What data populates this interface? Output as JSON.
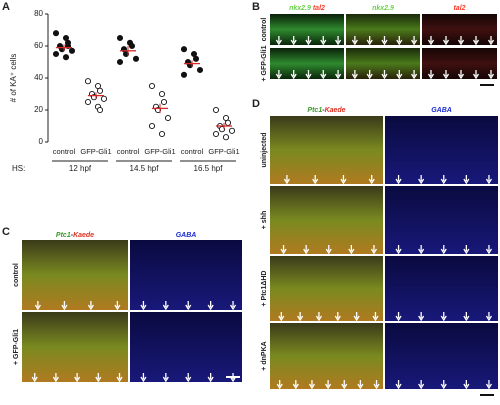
{
  "chart_data": {
    "type": "dot",
    "panel_label": "A",
    "ylabel": "# of KA⁺ cells",
    "categories": [
      "control",
      "GFP-Gli1",
      "control",
      "GFP-Gli1",
      "control",
      "GFP-Gli1"
    ],
    "fills": [
      "filled",
      "open",
      "filled",
      "open",
      "filled",
      "open"
    ],
    "values": [
      [
        68,
        65,
        62,
        60,
        58,
        57,
        55,
        53,
        60
      ],
      [
        38,
        35,
        32,
        30,
        28,
        27,
        25,
        22,
        20
      ],
      [
        65,
        62,
        60,
        58,
        55,
        52,
        50
      ],
      [
        35,
        30,
        25,
        22,
        20,
        15,
        10,
        5
      ],
      [
        58,
        55,
        52,
        50,
        48,
        45,
        42
      ],
      [
        20,
        15,
        12,
        10,
        8,
        7,
        5,
        3
      ]
    ],
    "means": [
      59,
      29,
      57,
      21,
      49,
      10
    ],
    "errors": [
      2,
      2,
      3,
      3,
      2,
      2
    ],
    "mean_color": "#d62a2a",
    "hs_label": "HS:",
    "hs_groups": [
      "12 hpf",
      "14.5 hpf",
      "16.5 hpf"
    ],
    "ylim": [
      0,
      80
    ],
    "yticks": [
      0,
      20,
      40,
      60,
      80
    ]
  },
  "panel_b": {
    "label": "B",
    "headers": [
      [
        "nkx2.9",
        "tal2"
      ],
      [
        "nkx2.9"
      ],
      [
        "tal2"
      ]
    ],
    "rows": [
      "control",
      "+ GFP-Gli1"
    ]
  },
  "panel_c": {
    "label": "C",
    "headers": [
      [
        "Ptc1",
        "-",
        "Kaede"
      ],
      [
        "GABA"
      ]
    ],
    "rows": [
      "control",
      "+ GFP-Gli1"
    ]
  },
  "panel_d": {
    "label": "D",
    "headers": [
      [
        "Ptc1",
        "-",
        "Kaede"
      ],
      [
        "GABA"
      ]
    ],
    "rows": [
      "uninjected",
      "+ shh",
      "+ Ptc1ΔHD",
      "+ dnPKA"
    ]
  }
}
